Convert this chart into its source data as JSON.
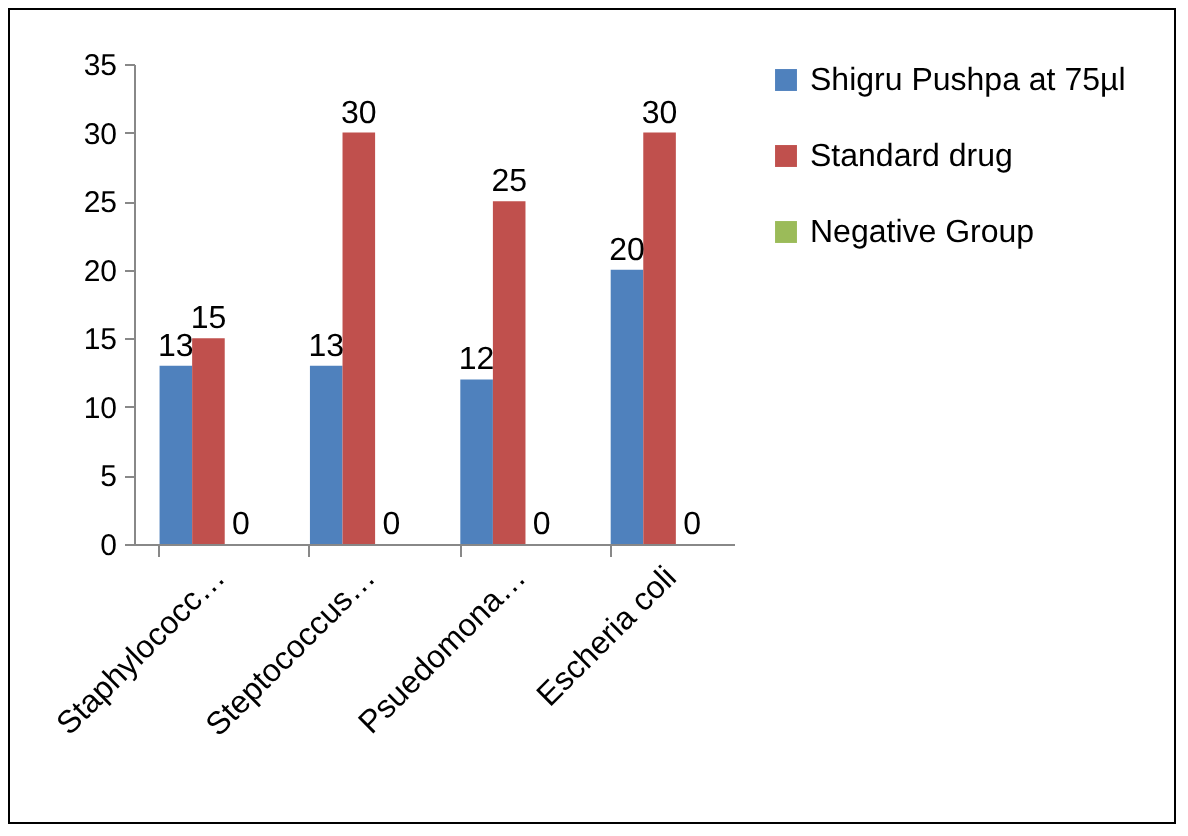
{
  "chart_data": {
    "type": "bar",
    "categories": [
      "Staphylococc…",
      "Steptococcus…",
      "Psuedomona…",
      "Escheria coli"
    ],
    "series": [
      {
        "name": "Shigru Pushpa at 75µl",
        "color": "#4f81bd",
        "values": [
          13,
          13,
          12,
          20
        ]
      },
      {
        "name": "Standard drug",
        "color": "#c0504d",
        "values": [
          15,
          30,
          25,
          30
        ]
      },
      {
        "name": "Negative Group",
        "color": "#9bbb59",
        "values": [
          0,
          0,
          0,
          0
        ]
      }
    ],
    "ylim": [
      0,
      35
    ],
    "yticks": [
      0,
      5,
      10,
      15,
      20,
      25,
      30,
      35
    ],
    "grid": false,
    "legend": "right",
    "data_labels": true
  }
}
